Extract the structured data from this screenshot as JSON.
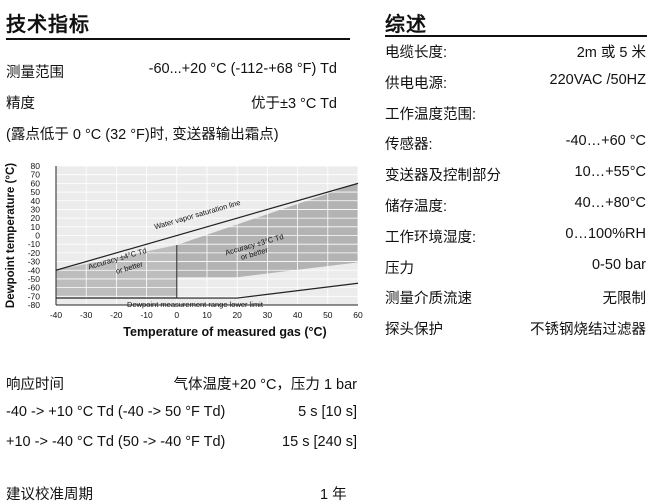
{
  "left": {
    "heading": "技术指标",
    "range_label": "测量范围",
    "range_value": "-60...+20 °C (-112-+68 °F) Td",
    "accuracy_label": "精度",
    "accuracy_value": "优于±3 °C Td",
    "note": "(露点低于 0 °C (32 °F)时, 变送器输出霜点)",
    "response_label": "响应时间",
    "response_cond": "气体温度+20 °C，压力 1 bar",
    "resp1_label": "-40 -> +10 °C Td (-40 -> 50 °F Td)",
    "resp1_value": "5 s [10 s]",
    "resp2_label": "+10 -> -40 °C Td (50 -> -40 °F Td)",
    "resp2_value": "15 s [240 s]",
    "calib_label": "建议校准周期",
    "calib_value": "1 年"
  },
  "right": {
    "heading": "综述",
    "rows": [
      {
        "label": "电缆长度:",
        "value": "2m 或 5 米"
      },
      {
        "label": "供电电源:",
        "value": "220VAC /50HZ"
      },
      {
        "label": "工作温度范围:",
        "value": ""
      },
      {
        "label": "传感器:",
        "value": "-40…+60 °C"
      },
      {
        "label": "变送器及控制部分",
        "value": "10…+55°C"
      },
      {
        "label": "储存温度:",
        "value": "40…+80°C"
      },
      {
        "label": "工作环境湿度:",
        "value": "0…100%RH"
      },
      {
        "label": "压力",
        "value": "0-50 bar"
      },
      {
        "label": "测量介质流速",
        "value": "无限制"
      },
      {
        "label": "探头保护",
        "value": "不锈钢烧结过滤器"
      }
    ]
  },
  "chart_data": {
    "type": "area",
    "xlabel": "Temperature of measured gas (°C)",
    "ylabel": "Dewpoint temperature (°C)",
    "xlim": [
      -40,
      60
    ],
    "ylim": [
      -80,
      80
    ],
    "x_ticks": [
      -40,
      -30,
      -20,
      -10,
      0,
      10,
      20,
      30,
      40,
      50,
      60
    ],
    "y_ticks": [
      80,
      70,
      60,
      50,
      40,
      30,
      20,
      10,
      0,
      -10,
      -20,
      -30,
      -40,
      -50,
      -60,
      -70,
      -80
    ],
    "grid": true,
    "regions": [
      {
        "name": "Accuracy ±4°C Td or better",
        "x": [
          -40,
          0,
          0,
          -40
        ],
        "y": [
          -40,
          -11,
          -72,
          -72
        ]
      },
      {
        "name": "Accuracy ±3°C Td or better",
        "x": [
          0,
          60,
          60,
          20,
          0
        ],
        "y": [
          -11,
          60,
          -31,
          -48,
          -48
        ]
      }
    ],
    "lines": [
      {
        "name": "Water vapor saturation line",
        "x": [
          -40,
          60
        ],
        "y": [
          -40,
          60
        ]
      },
      {
        "name": "Dewpoint measurement range lower limit",
        "x": [
          -40,
          20,
          60
        ],
        "y": [
          -72,
          -72,
          -55
        ]
      }
    ],
    "annotations": {
      "saturation": "Water vapor saturation line",
      "acc4_l1": "Accuracy ±4°C Td",
      "acc4_l2": "or better",
      "acc3_l1": "Accuracy ±3°C Td",
      "acc3_l2": "or better",
      "lower_limit": "Dewpoint measurement range lower limit"
    }
  }
}
